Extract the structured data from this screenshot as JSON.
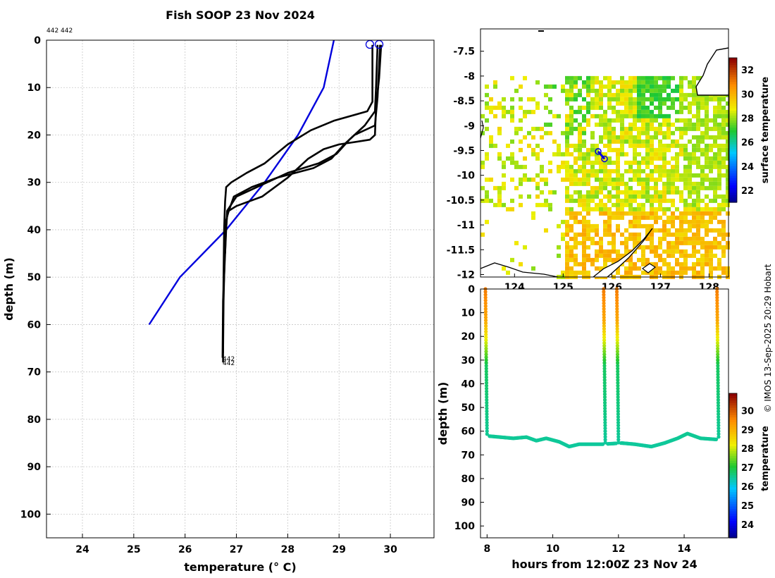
{
  "title": "Fish SOOP 23 Nov 2024",
  "top_id_label": "442 442",
  "copyright": "© IMOS 13-Sep-2025 20:29 Hobart",
  "chart_data": [
    {
      "type": "line",
      "name": "profile",
      "xlabel": "temperature (° C)",
      "ylabel": "depth (m)",
      "xlim": [
        23.3,
        30.85
      ],
      "ylim": [
        105,
        0
      ],
      "xticks": [
        24,
        25,
        26,
        27,
        28,
        29,
        30
      ],
      "yticks": [
        0,
        10,
        20,
        30,
        40,
        50,
        60,
        70,
        80,
        90,
        100
      ],
      "end_labels": [
        "442",
        "442"
      ],
      "series": [
        {
          "name": "climatology",
          "color": "#0000dd",
          "points": [
            [
              28.9,
              0
            ],
            [
              28.7,
              10
            ],
            [
              28.2,
              20
            ],
            [
              27.55,
              30
            ],
            [
              26.8,
              40
            ],
            [
              25.9,
              50
            ],
            [
              25.3,
              60
            ]
          ]
        },
        {
          "name": "profile 1",
          "color": "#000000",
          "points": [
            [
              29.65,
              1
            ],
            [
              29.65,
              13
            ],
            [
              29.55,
              15
            ],
            [
              28.9,
              17
            ],
            [
              28.45,
              19
            ],
            [
              28.0,
              22
            ],
            [
              27.55,
              26
            ],
            [
              27.2,
              28
            ],
            [
              26.9,
              30
            ],
            [
              26.8,
              31
            ],
            [
              26.78,
              34
            ],
            [
              26.76,
              40
            ],
            [
              26.75,
              50
            ],
            [
              26.74,
              60
            ],
            [
              26.74,
              68
            ]
          ]
        },
        {
          "name": "profile 2",
          "color": "#000000",
          "points": [
            [
              29.75,
              1
            ],
            [
              29.72,
              10
            ],
            [
              29.7,
              15
            ],
            [
              29.5,
              18
            ],
            [
              29.2,
              21
            ],
            [
              28.95,
              24
            ],
            [
              28.6,
              26
            ],
            [
              28.0,
              28
            ],
            [
              27.4,
              31
            ],
            [
              27.0,
              33
            ],
            [
              26.82,
              36
            ],
            [
              26.8,
              40
            ],
            [
              26.78,
              45
            ],
            [
              26.74,
              55
            ],
            [
              26.73,
              67
            ]
          ]
        },
        {
          "name": "profile 3",
          "color": "#000000",
          "points": [
            [
              29.8,
              1
            ],
            [
              29.75,
              12
            ],
            [
              29.7,
              18
            ],
            [
              29.3,
              20
            ],
            [
              29.1,
              22
            ],
            [
              28.85,
              25
            ],
            [
              28.5,
              27
            ],
            [
              27.8,
              29
            ],
            [
              27.3,
              31
            ],
            [
              26.95,
              33
            ],
            [
              26.82,
              37
            ],
            [
              26.78,
              42
            ],
            [
              26.75,
              55
            ],
            [
              26.74,
              66
            ]
          ]
        },
        {
          "name": "profile 4",
          "color": "#000000",
          "points": [
            [
              29.82,
              1
            ],
            [
              29.78,
              8
            ],
            [
              29.72,
              14
            ],
            [
              29.7,
              20
            ],
            [
              29.6,
              21
            ],
            [
              29.0,
              22
            ],
            [
              28.7,
              23
            ],
            [
              28.4,
              25
            ],
            [
              28.0,
              29
            ],
            [
              27.5,
              33
            ],
            [
              27.0,
              35
            ],
            [
              26.85,
              36
            ],
            [
              26.8,
              38
            ],
            [
              26.78,
              45
            ]
          ]
        }
      ],
      "surface_markers": [
        29.6,
        29.78
      ]
    },
    {
      "type": "heatmap",
      "name": "map",
      "xlim": [
        123.3,
        128.4
      ],
      "ylim": [
        -12.05,
        -7.05
      ],
      "xticks": [
        124,
        125,
        126,
        127,
        128
      ],
      "yticks": [
        -7.5,
        -8,
        -8.5,
        -9,
        -9.5,
        -10,
        -10.5,
        -11,
        -11.5,
        -12
      ],
      "colorbar_label": "surface temperature",
      "colorbar_ticks": [
        22,
        24,
        26,
        28,
        30,
        32
      ],
      "colorbar_range": [
        21,
        33
      ],
      "track": [
        [
          125.72,
          -9.52
        ],
        [
          125.85,
          -9.67
        ]
      ]
    },
    {
      "type": "scatter",
      "name": "section",
      "xlabel": "hours from 12:00Z 23 Nov 24",
      "ylabel": "depth (m)",
      "xlim": [
        7.8,
        15.35
      ],
      "ylim": [
        105,
        0
      ],
      "xticks": [
        8,
        10,
        12,
        14
      ],
      "yticks": [
        0,
        10,
        20,
        30,
        40,
        50,
        60,
        70,
        80,
        90,
        100
      ],
      "colorbar_label": "temperature",
      "colorbar_ticks": [
        24,
        25,
        26,
        27,
        28,
        29,
        30
      ],
      "colorbar_range": [
        23.3,
        30.9
      ],
      "dives": [
        {
          "start": 7.95,
          "end": 8.05
        },
        {
          "start": 11.55,
          "end": 11.65
        },
        {
          "start": 11.95,
          "end": 12.05
        },
        {
          "start": 15.0,
          "end": 15.1
        }
      ],
      "bottom_depth": [
        [
          8.0,
          62
        ],
        [
          8.4,
          62.5
        ],
        [
          8.8,
          63
        ],
        [
          9.2,
          62.5
        ],
        [
          9.5,
          64
        ],
        [
          9.8,
          63
        ],
        [
          10.2,
          64.5
        ],
        [
          10.5,
          66.5
        ],
        [
          10.8,
          65.5
        ],
        [
          11.2,
          65.5
        ],
        [
          11.5,
          65.5
        ],
        [
          12.1,
          65
        ],
        [
          12.5,
          65.5
        ],
        [
          13.0,
          66.5
        ],
        [
          13.4,
          65
        ],
        [
          13.8,
          63
        ],
        [
          14.1,
          61
        ],
        [
          14.5,
          63
        ],
        [
          15.0,
          63.5
        ]
      ]
    }
  ]
}
